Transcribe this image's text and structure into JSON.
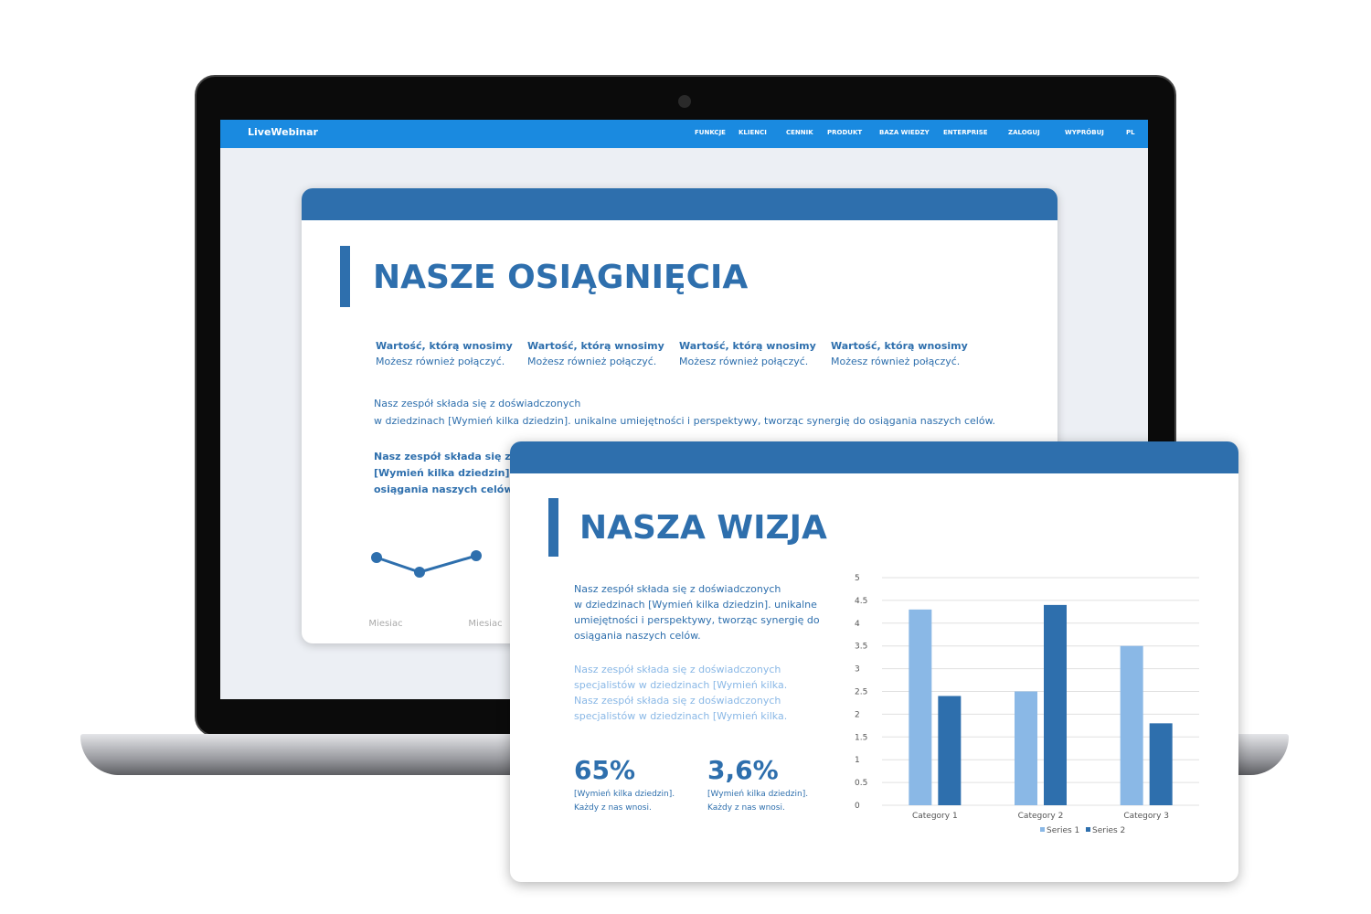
{
  "nav": {
    "logo": "LiveWebinar",
    "items": [
      "FUNKCJE",
      "KLIENCI",
      "CENNIK",
      "PRODUKT",
      "BAZA WIEDZY",
      "ENTERPRISE",
      "ZALOGUJ",
      "WYPRÓBUJ",
      "PL"
    ]
  },
  "slide1": {
    "title": "NASZE OSIĄGNIĘCIA",
    "features": [
      {
        "title": "Wartość, którą wnosimy",
        "text": "Możesz również połączyć."
      },
      {
        "title": "Wartość, którą wnosimy",
        "text": "Możesz również połączyć."
      },
      {
        "title": "Wartość, którą wnosimy",
        "text": "Możesz również połączyć."
      },
      {
        "title": "Wartość, którą wnosimy",
        "text": "Możesz również połączyć."
      }
    ],
    "paragraph": [
      "Nasz zespół składa się z doświadczonych",
      "w dziedzinach [Wymień kilka dziedzin]. unikalne umiejętności i perspektywy, tworząc synergię do osiągania naszych celów."
    ],
    "bold_paragraph": [
      "Nasz zespół składa się z do",
      "[Wymień kilka dziedzin]. Ka",
      "osiągania naszych celów."
    ]
  },
  "slide2": {
    "title": "NASZA WIZJA",
    "paragraph": [
      "Nasz zespół składa się z doświadczonych",
      "w dziedzinach [Wymień kilka dziedzin]. unikalne",
      "umiejętności i perspektywy, tworząc synergię do",
      "osiągania naszych celów."
    ],
    "light_paragraph": [
      "Nasz zespół składa się z doświadczonych",
      "specjalistów w dziedzinach [Wymień kilka.",
      "Nasz zespół składa się z doświadczonych",
      "specjalistów w dziedzinach [Wymień kilka."
    ],
    "stats": [
      {
        "value": "65%",
        "lines": [
          "[Wymień kilka dziedzin].",
          "Każdy z nas wnosi."
        ]
      },
      {
        "value": "3,6%",
        "lines": [
          "[Wymień kilka dziedzin].",
          "Każdy z nas wnosi."
        ]
      }
    ]
  },
  "chart_data": [
    {
      "type": "bar",
      "categories": [
        "Category 1",
        "Category 2",
        "Category 3"
      ],
      "series": [
        {
          "name": "Series 1",
          "color": "#8ab8e6",
          "values": [
            4.3,
            2.5,
            3.5
          ]
        },
        {
          "name": "Series 2",
          "color": "#2e6fad",
          "values": [
            2.4,
            4.4,
            1.8
          ]
        }
      ],
      "ylim": [
        0,
        5
      ],
      "yticks": [
        0,
        0.5,
        1,
        1.5,
        2,
        2.5,
        3,
        3.5,
        4,
        4.5,
        5
      ],
      "grid": true,
      "legend": "bottom"
    },
    {
      "type": "line",
      "categories": [
        "Miesiac",
        null,
        "Miesiac"
      ],
      "values": [
        4.3,
        3.5,
        4.4
      ],
      "color": "#2e6fad"
    }
  ]
}
